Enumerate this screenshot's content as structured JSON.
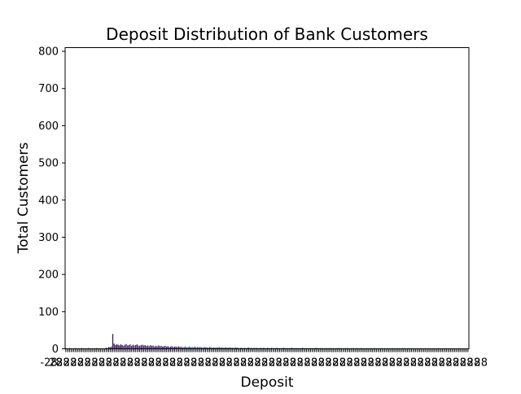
{
  "chart_data": {
    "type": "bar",
    "title": "Deposit Distribution of Bank Customers",
    "xlabel": "Deposit",
    "ylabel": "Total Customers",
    "ylim": [
      0,
      810
    ],
    "yticks": [
      0,
      100,
      200,
      300,
      400,
      500,
      600,
      700,
      800
    ],
    "grid": false,
    "legend": "none",
    "palette": [
      "#3b1f5e",
      "#4a2c7a",
      "#3d4a8c",
      "#2e6b8e",
      "#23888e",
      "#2ea97f",
      "#5ec962"
    ],
    "note_x_ticks": "x tick labels are densely overlapped and illegible",
    "series": [
      {
        "values": [
          2,
          1,
          1,
          2,
          1,
          1,
          1,
          2,
          1,
          1,
          1,
          1,
          2,
          1,
          1,
          1,
          1,
          2,
          1,
          1,
          1,
          1,
          1,
          2,
          1,
          1,
          1,
          1,
          1,
          1,
          3,
          2,
          5,
          4,
          6,
          40,
          14,
          10,
          12,
          11,
          9,
          12,
          10,
          8,
          11,
          13,
          9,
          10,
          12,
          8,
          11,
          9,
          10,
          12,
          9,
          8,
          10,
          11,
          9,
          10,
          8,
          9,
          7,
          10,
          8,
          9,
          6,
          8,
          7,
          9,
          7,
          8,
          6,
          7,
          8,
          6,
          7,
          5,
          6,
          7,
          5,
          6,
          6,
          5,
          7,
          5,
          6,
          4,
          5,
          6,
          4,
          5,
          6,
          4,
          5,
          4,
          6,
          4,
          5,
          4,
          5,
          4,
          3,
          5,
          4,
          4,
          3,
          5,
          4,
          3,
          4,
          3,
          4,
          3,
          5,
          3,
          4,
          3,
          3,
          4,
          3,
          3,
          4,
          3,
          3,
          2,
          4,
          3,
          3,
          2,
          3,
          3,
          2,
          3,
          2,
          3,
          4,
          2,
          3,
          2,
          3,
          2,
          3,
          2,
          2,
          3,
          2,
          3,
          2,
          2,
          3,
          2,
          2,
          3,
          2,
          2,
          2,
          3,
          2,
          2,
          2,
          2,
          3,
          2,
          2,
          2,
          2,
          2,
          3,
          2,
          2,
          2,
          2,
          2,
          2,
          2,
          3,
          2,
          2,
          2,
          2,
          2,
          2,
          2,
          2,
          2,
          3,
          2,
          2,
          2,
          2,
          2,
          1,
          2,
          2,
          2,
          2,
          2,
          2,
          2,
          1,
          2,
          2,
          2,
          2,
          2,
          1,
          2,
          2,
          2,
          2,
          1,
          2,
          2,
          2,
          1,
          2,
          2,
          1,
          2,
          2,
          2,
          1,
          2,
          2,
          1,
          2,
          2,
          1,
          2,
          2,
          1,
          2,
          1,
          2,
          2,
          1,
          2,
          1,
          2,
          1,
          2,
          1,
          2,
          2,
          1,
          2,
          1,
          2,
          1,
          2,
          1,
          2,
          1,
          1,
          2,
          1,
          2,
          1,
          2,
          1,
          1,
          2,
          1,
          2,
          1,
          1,
          2,
          1,
          1,
          2,
          1,
          1,
          2,
          1,
          1,
          1,
          2,
          1,
          1,
          1,
          2,
          1,
          1,
          1,
          1,
          2,
          1,
          1,
          1,
          1,
          1,
          2,
          1,
          1,
          1,
          1,
          1,
          1,
          1
        ]
      }
    ]
  }
}
